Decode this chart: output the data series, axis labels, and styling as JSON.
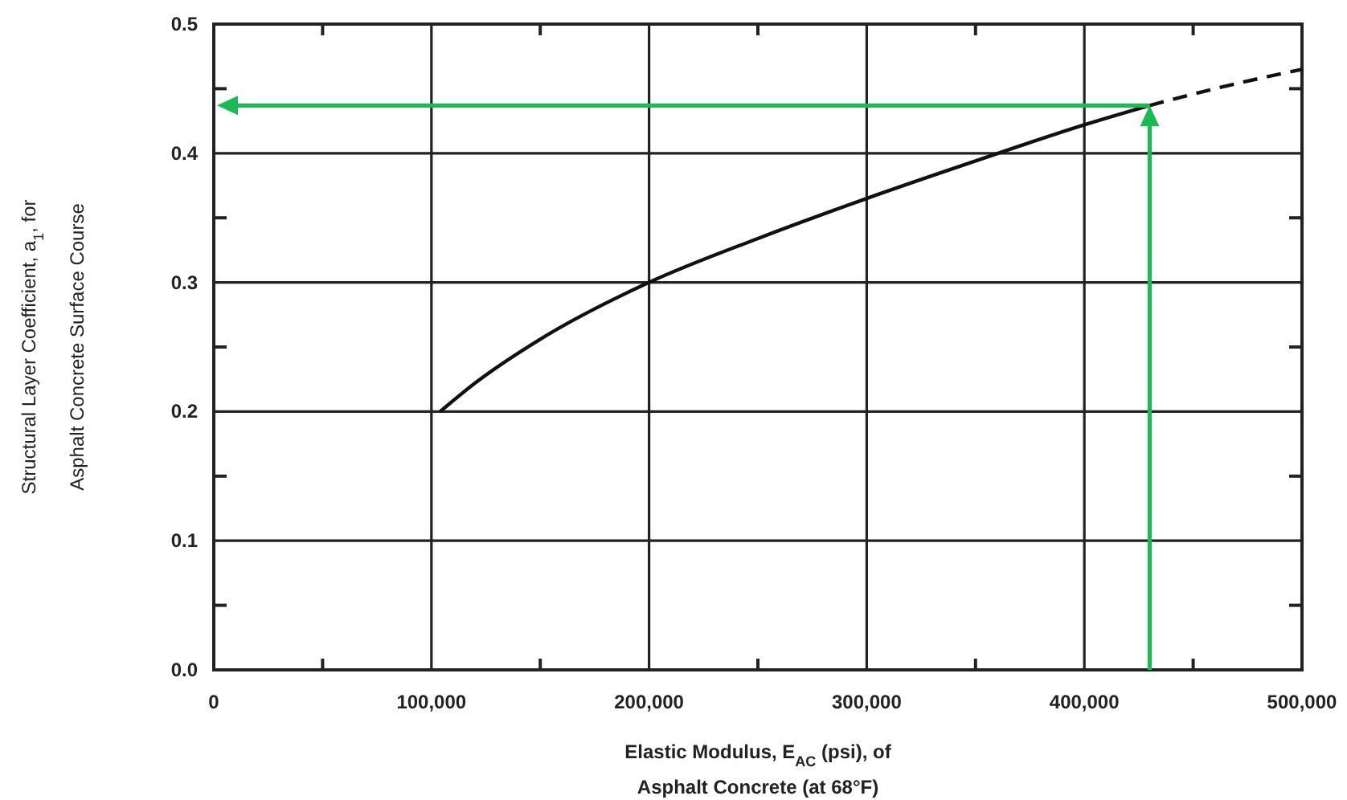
{
  "chart_data": {
    "type": "line",
    "xlabel": "Elastic Modulus, E$_{AC}$ (psi), of\nAsphalt Concrete (at 68°F)",
    "ylabel": "Structural Layer Coefficient, a$_{1}$, for\nAsphalt Concrete Surface Course",
    "xlim": [
      0,
      500000
    ],
    "ylim": [
      0,
      0.5
    ],
    "xticks": [
      {
        "value": 0,
        "label": "0"
      },
      {
        "value": 50000,
        "label": null
      },
      {
        "value": 100000,
        "label": "100,000"
      },
      {
        "value": 150000,
        "label": null
      },
      {
        "value": 200000,
        "label": "200,000"
      },
      {
        "value": 250000,
        "label": null
      },
      {
        "value": 300000,
        "label": "300,000"
      },
      {
        "value": 350000,
        "label": null
      },
      {
        "value": 400000,
        "label": "400,000"
      },
      {
        "value": 450000,
        "label": null
      },
      {
        "value": 500000,
        "label": "500,000"
      }
    ],
    "yticks": [
      {
        "value": 0,
        "label": "0.0"
      },
      {
        "value": 0.05,
        "label": null
      },
      0.1,
      {
        "value": 0.15,
        "label": null
      },
      0.2,
      {
        "value": 0.25,
        "label": null
      },
      0.3,
      {
        "value": 0.35,
        "label": null
      },
      0.4,
      {
        "value": 0.45,
        "label": null
      },
      0.5
    ],
    "grid": true,
    "series": [
      {
        "color": "#111111",
        "line_style": "solid",
        "x": [
          104000,
          120000,
          150000,
          200000,
          250000,
          300000,
          350000,
          400000,
          430000
        ],
        "values": [
          0.2,
          0.222,
          0.256,
          0.3,
          0.334,
          0.365,
          0.394,
          0.422,
          0.437
        ]
      },
      {
        "color": "#111111",
        "line_style": "dashed",
        "x": [
          430000,
          460000,
          500000
        ],
        "values": [
          0.437,
          0.45,
          0.465
        ]
      }
    ]
  }
}
